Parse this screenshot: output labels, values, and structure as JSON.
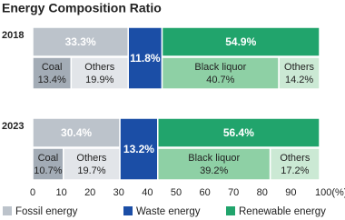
{
  "chart_data": {
    "type": "stacked-bar-hierarchy",
    "title": "Energy Composition Ratio",
    "categories": [
      "2018",
      "2023"
    ],
    "groups": [
      {
        "name": "Fossil energy",
        "color": "#bcc3cb",
        "values": [
          33.3,
          30.4
        ],
        "value_labels": [
          "33.3%",
          "30.4%"
        ],
        "parts": [
          {
            "name": "Coal",
            "color": "#a3acb6",
            "values": [
              13.4,
              10.7
            ],
            "value_labels": [
              "13.4%",
              "10.7%"
            ]
          },
          {
            "name": "Others",
            "color": "#e2e5e9",
            "values": [
              19.9,
              19.7
            ],
            "value_labels": [
              "19.9%",
              "19.7%"
            ]
          }
        ]
      },
      {
        "name": "Waste energy",
        "color": "#1b4ea6",
        "values": [
          11.8,
          13.2
        ],
        "value_labels": [
          "11.8%",
          "13.2%"
        ],
        "parts": []
      },
      {
        "name": "Renewable energy",
        "color": "#21a46c",
        "values": [
          54.9,
          56.4
        ],
        "value_labels": [
          "54.9%",
          "56.4%"
        ],
        "parts": [
          {
            "name": "Black liquor",
            "color": "#8ed0a5",
            "values": [
              40.7,
              39.2
            ],
            "value_labels": [
              "40.7%",
              "39.2%"
            ]
          },
          {
            "name": "Others",
            "color": "#cbe9d4",
            "values": [
              14.2,
              17.2
            ],
            "value_labels": [
              "14.2%",
              "17.2%"
            ]
          }
        ]
      }
    ],
    "xlim": [
      0,
      100
    ],
    "xticks": [
      0,
      10,
      20,
      30,
      40,
      50,
      60,
      70,
      80,
      90,
      {
        "value": 100,
        "label": "100(%)"
      }
    ]
  }
}
